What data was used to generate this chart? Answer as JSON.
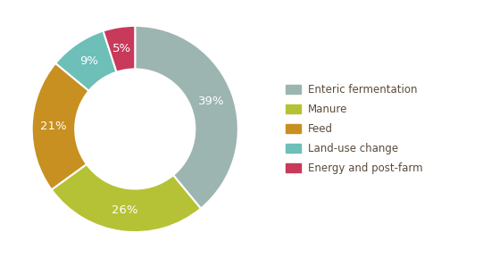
{
  "labels": [
    "Enteric fermentation",
    "Manure",
    "Feed",
    "Land-use change",
    "Energy and post-farm"
  ],
  "values": [
    39,
    26,
    21,
    9,
    5
  ],
  "colors": [
    "#9db5b0",
    "#b5c235",
    "#c89020",
    "#6dbfb8",
    "#c8395a"
  ],
  "pct_labels": [
    "39%",
    "26%",
    "21%",
    "9%",
    "5%"
  ],
  "background_color": "#ffffff",
  "donut_width": 0.42,
  "legend_fontsize": 8.5,
  "pct_fontsize": 9.5,
  "text_color": "#ffffff",
  "label_text_color": "#5a4a3a"
}
